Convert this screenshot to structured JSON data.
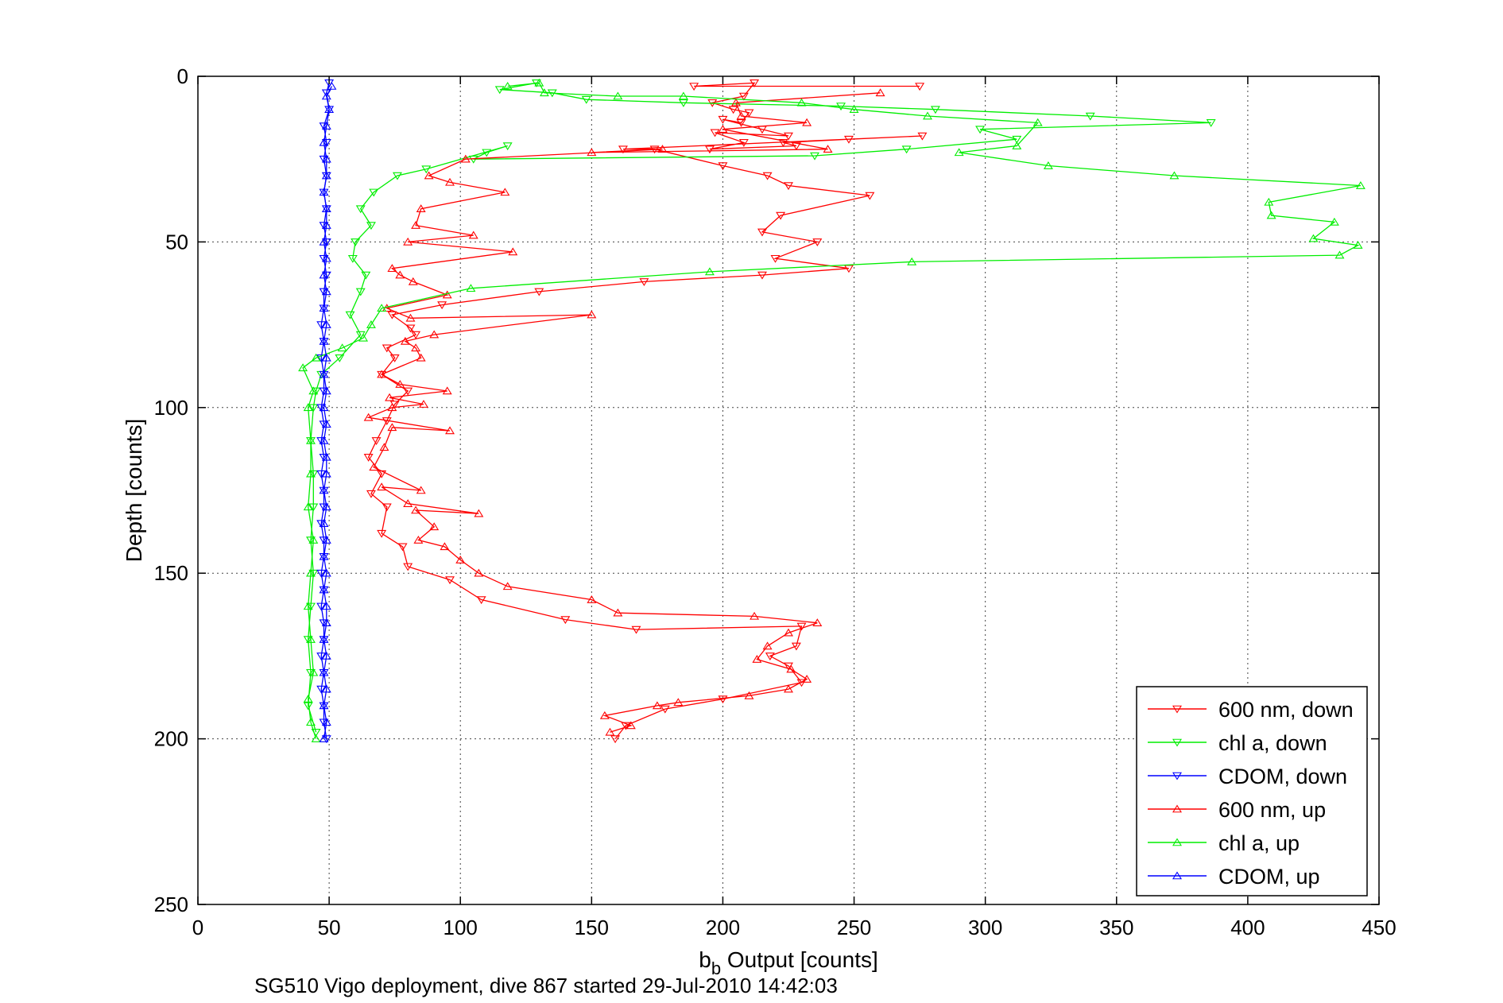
{
  "chart_data": {
    "type": "line",
    "title": "",
    "xlabel_main": "b",
    "xlabel_sub": "b",
    "xlabel_rest": " Output [counts]",
    "ylabel": "Depth [counts]",
    "caption": "SG510 Vigo deployment, dive 867 started 29-Jul-2010 14:42:03",
    "xlim": [
      0,
      450
    ],
    "ylim": [
      0,
      250
    ],
    "y_reversed": true,
    "grid": true,
    "legend_position": "bottom-right",
    "xticks": [
      "0",
      "50",
      "100",
      "150",
      "200",
      "250",
      "300",
      "350",
      "400",
      "450"
    ],
    "yticks": [
      "0",
      "50",
      "100",
      "150",
      "200",
      "250"
    ],
    "series": [
      {
        "name": "600 nm, down",
        "color": "#ff0000",
        "marker": "triangle-down",
        "points": [
          [
            275,
            3
          ],
          [
            189,
            3
          ],
          [
            212,
            2
          ],
          [
            208,
            6
          ],
          [
            196,
            8
          ],
          [
            204,
            10
          ],
          [
            210,
            11
          ],
          [
            207,
            14
          ],
          [
            200,
            13
          ],
          [
            215,
            16
          ],
          [
            225,
            18
          ],
          [
            197,
            17
          ],
          [
            208,
            20
          ],
          [
            195,
            22
          ],
          [
            228,
            21
          ],
          [
            223,
            20
          ],
          [
            248,
            19
          ],
          [
            276,
            18
          ],
          [
            162,
            22
          ],
          [
            174,
            22
          ],
          [
            200,
            27
          ],
          [
            217,
            30
          ],
          [
            225,
            33
          ],
          [
            256,
            36
          ],
          [
            222,
            42
          ],
          [
            215,
            47
          ],
          [
            236,
            50
          ],
          [
            220,
            55
          ],
          [
            248,
            58
          ],
          [
            215,
            60
          ],
          [
            170,
            62
          ],
          [
            130,
            65
          ],
          [
            93,
            69
          ],
          [
            74,
            72
          ],
          [
            81,
            76
          ],
          [
            83,
            78
          ],
          [
            72,
            82
          ],
          [
            75,
            85
          ],
          [
            70,
            90
          ],
          [
            80,
            95
          ],
          [
            75,
            99
          ],
          [
            72,
            104
          ],
          [
            68,
            110
          ],
          [
            65,
            115
          ],
          [
            70,
            120
          ],
          [
            66,
            126
          ],
          [
            72,
            130
          ],
          [
            70,
            138
          ],
          [
            78,
            142
          ],
          [
            80,
            148
          ],
          [
            96,
            152
          ],
          [
            108,
            158
          ],
          [
            140,
            164
          ],
          [
            167,
            167
          ],
          [
            230,
            166
          ],
          [
            228,
            172
          ],
          [
            218,
            175
          ],
          [
            225,
            178
          ],
          [
            230,
            183
          ],
          [
            200,
            188
          ],
          [
            178,
            191
          ],
          [
            163,
            196
          ],
          [
            159,
            200
          ]
        ]
      },
      {
        "name": "chl a, down",
        "color": "#00ee00",
        "marker": "triangle-down",
        "points": [
          [
            129,
            2
          ],
          [
            115,
            4
          ],
          [
            135,
            5
          ],
          [
            148,
            7
          ],
          [
            185,
            8
          ],
          [
            245,
            9
          ],
          [
            281,
            10
          ],
          [
            340,
            12
          ],
          [
            386,
            14
          ],
          [
            298,
            16
          ],
          [
            312,
            19
          ],
          [
            270,
            22
          ],
          [
            235,
            24
          ],
          [
            105,
            25
          ],
          [
            110,
            23
          ],
          [
            118,
            21
          ],
          [
            87,
            28
          ],
          [
            76,
            30
          ],
          [
            67,
            35
          ],
          [
            62,
            40
          ],
          [
            66,
            45
          ],
          [
            60,
            50
          ],
          [
            59,
            55
          ],
          [
            64,
            60
          ],
          [
            62,
            65
          ],
          [
            58,
            72
          ],
          [
            62,
            78
          ],
          [
            54,
            85
          ],
          [
            47,
            90
          ],
          [
            45,
            95
          ],
          [
            44,
            100
          ],
          [
            43,
            110
          ],
          [
            44,
            120
          ],
          [
            44,
            130
          ],
          [
            43,
            140
          ],
          [
            44,
            150
          ],
          [
            43,
            160
          ],
          [
            42,
            170
          ],
          [
            43,
            180
          ],
          [
            42,
            190
          ],
          [
            45,
            198
          ]
        ]
      },
      {
        "name": "CDOM, down",
        "color": "#0000ff",
        "marker": "triangle-down",
        "points": [
          [
            50,
            2
          ],
          [
            49,
            5
          ],
          [
            50,
            10
          ],
          [
            48,
            15
          ],
          [
            49,
            20
          ],
          [
            48,
            25
          ],
          [
            49,
            30
          ],
          [
            48,
            35
          ],
          [
            49,
            40
          ],
          [
            48,
            45
          ],
          [
            49,
            50
          ],
          [
            48,
            55
          ],
          [
            49,
            60
          ],
          [
            48,
            65
          ],
          [
            48,
            70
          ],
          [
            47,
            75
          ],
          [
            48,
            80
          ],
          [
            47,
            85
          ],
          [
            48,
            90
          ],
          [
            48,
            95
          ],
          [
            47,
            100
          ],
          [
            48,
            105
          ],
          [
            47,
            110
          ],
          [
            48,
            115
          ],
          [
            47,
            120
          ],
          [
            48,
            125
          ],
          [
            48,
            130
          ],
          [
            47,
            135
          ],
          [
            48,
            140
          ],
          [
            48,
            145
          ],
          [
            47,
            150
          ],
          [
            48,
            155
          ],
          [
            47,
            160
          ],
          [
            48,
            165
          ],
          [
            48,
            170
          ],
          [
            47,
            175
          ],
          [
            48,
            180
          ],
          [
            47,
            185
          ],
          [
            48,
            190
          ],
          [
            48,
            195
          ],
          [
            49,
            200
          ]
        ]
      },
      {
        "name": "600 nm, up",
        "color": "#ff0000",
        "marker": "triangle-up",
        "points": [
          [
            157,
            198
          ],
          [
            165,
            196
          ],
          [
            155,
            193
          ],
          [
            175,
            190
          ],
          [
            183,
            189
          ],
          [
            210,
            187
          ],
          [
            225,
            185
          ],
          [
            232,
            182
          ],
          [
            226,
            179
          ],
          [
            213,
            176
          ],
          [
            217,
            172
          ],
          [
            225,
            168
          ],
          [
            236,
            165
          ],
          [
            212,
            163
          ],
          [
            160,
            162
          ],
          [
            150,
            158
          ],
          [
            118,
            154
          ],
          [
            107,
            150
          ],
          [
            100,
            146
          ],
          [
            94,
            142
          ],
          [
            84,
            140
          ],
          [
            90,
            136
          ],
          [
            83,
            131
          ],
          [
            107,
            132
          ],
          [
            80,
            129
          ],
          [
            70,
            124
          ],
          [
            85,
            125
          ],
          [
            67,
            118
          ],
          [
            71,
            112
          ],
          [
            74,
            106
          ],
          [
            96,
            107
          ],
          [
            65,
            103
          ],
          [
            74,
            100
          ],
          [
            86,
            99
          ],
          [
            73,
            97
          ],
          [
            95,
            95
          ],
          [
            77,
            93
          ],
          [
            70,
            90
          ],
          [
            85,
            85
          ],
          [
            83,
            82
          ],
          [
            79,
            80
          ],
          [
            90,
            78
          ],
          [
            150,
            72
          ],
          [
            81,
            73
          ],
          [
            72,
            70
          ],
          [
            95,
            66
          ],
          [
            82,
            62
          ],
          [
            77,
            60
          ],
          [
            74,
            58
          ],
          [
            120,
            53
          ],
          [
            80,
            50
          ],
          [
            105,
            48
          ],
          [
            83,
            45
          ],
          [
            85,
            40
          ],
          [
            117,
            35
          ],
          [
            96,
            32
          ],
          [
            88,
            30
          ],
          [
            102,
            25
          ],
          [
            177,
            22
          ],
          [
            150,
            23
          ],
          [
            240,
            22
          ],
          [
            200,
            16
          ],
          [
            232,
            14
          ],
          [
            207,
            12
          ],
          [
            205,
            8
          ],
          [
            260,
            5
          ]
        ]
      },
      {
        "name": "chl a, up",
        "color": "#00ee00",
        "marker": "triangle-up",
        "points": [
          [
            45,
            200
          ],
          [
            43,
            195
          ],
          [
            42,
            188
          ],
          [
            44,
            180
          ],
          [
            43,
            170
          ],
          [
            42,
            160
          ],
          [
            43,
            150
          ],
          [
            44,
            140
          ],
          [
            42,
            130
          ],
          [
            43,
            120
          ],
          [
            43,
            110
          ],
          [
            42,
            100
          ],
          [
            44,
            95
          ],
          [
            40,
            88
          ],
          [
            45,
            85
          ],
          [
            55,
            82
          ],
          [
            63,
            79
          ],
          [
            66,
            75
          ],
          [
            70,
            70
          ],
          [
            104,
            64
          ],
          [
            195,
            59
          ],
          [
            272,
            56
          ],
          [
            435,
            54
          ],
          [
            442,
            51
          ],
          [
            425,
            49
          ],
          [
            433,
            44
          ],
          [
            409,
            42
          ],
          [
            408,
            38
          ],
          [
            443,
            33
          ],
          [
            372,
            30
          ],
          [
            324,
            27
          ],
          [
            290,
            23
          ],
          [
            312,
            21
          ],
          [
            320,
            14
          ],
          [
            278,
            12
          ],
          [
            250,
            10
          ],
          [
            230,
            8
          ],
          [
            185,
            6
          ],
          [
            160,
            6
          ],
          [
            132,
            5
          ],
          [
            130,
            2
          ],
          [
            118,
            3
          ]
        ]
      },
      {
        "name": "CDOM, up",
        "color": "#0000ff",
        "marker": "triangle-up",
        "points": [
          [
            48,
            200
          ],
          [
            49,
            195
          ],
          [
            48,
            190
          ],
          [
            49,
            185
          ],
          [
            48,
            180
          ],
          [
            49,
            175
          ],
          [
            48,
            170
          ],
          [
            49,
            165
          ],
          [
            49,
            160
          ],
          [
            48,
            155
          ],
          [
            49,
            150
          ],
          [
            48,
            145
          ],
          [
            49,
            140
          ],
          [
            48,
            135
          ],
          [
            49,
            130
          ],
          [
            48,
            125
          ],
          [
            49,
            120
          ],
          [
            49,
            115
          ],
          [
            48,
            110
          ],
          [
            49,
            105
          ],
          [
            48,
            100
          ],
          [
            49,
            95
          ],
          [
            48,
            90
          ],
          [
            49,
            85
          ],
          [
            48,
            80
          ],
          [
            49,
            75
          ],
          [
            48,
            70
          ],
          [
            49,
            65
          ],
          [
            48,
            60
          ],
          [
            49,
            55
          ],
          [
            48,
            50
          ],
          [
            49,
            45
          ],
          [
            49,
            40
          ],
          [
            48,
            35
          ],
          [
            49,
            30
          ],
          [
            49,
            25
          ],
          [
            48,
            20
          ],
          [
            49,
            15
          ],
          [
            50,
            10
          ],
          [
            49,
            6
          ],
          [
            51,
            3
          ]
        ]
      }
    ]
  }
}
